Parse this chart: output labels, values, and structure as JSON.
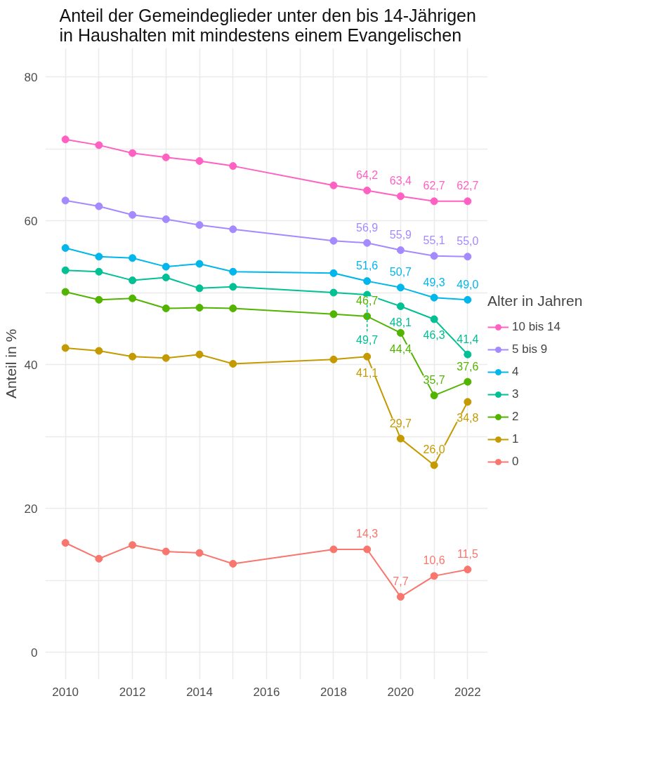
{
  "chart_data": {
    "type": "line",
    "title": "Anteil der Gemeindeglieder unter den bis 14-Jährigen\nin Haushalten mit mindestens einem Evangelischen",
    "ylabel": "Anteil in %",
    "legend_title": "Alter in Jahren",
    "x": [
      2010,
      2011,
      2012,
      2013,
      2014,
      2015,
      2018,
      2019,
      2020,
      2021,
      2022
    ],
    "xlim": [
      2009.4,
      2022.6
    ],
    "ylim": [
      -3.8,
      84
    ],
    "xticks": [
      2010,
      {
        "value": 2011,
        "label": null
      },
      2012,
      {
        "value": 2013,
        "label": null
      },
      2014,
      {
        "value": 2015,
        "label": null
      },
      2016,
      {
        "value": 2017,
        "label": null
      },
      2018,
      {
        "value": 2019,
        "label": null
      },
      2020,
      {
        "value": 2021,
        "label": null
      },
      2022
    ],
    "yticks": [
      0,
      {
        "value": 10,
        "label": null
      },
      20,
      {
        "value": 30,
        "label": null
      },
      40,
      {
        "value": 50,
        "label": null
      },
      60,
      {
        "value": 70,
        "label": null
      },
      80
    ],
    "grid": true,
    "legend": "right",
    "marker": "circle",
    "line_style": "solid",
    "series": [
      {
        "name": "10 bis 14",
        "color": "#ff61c3",
        "values": [
          71.3,
          70.5,
          69.4,
          68.8,
          68.3,
          67.6,
          64.9,
          64.2,
          63.4,
          62.7,
          62.7
        ],
        "value_labels": [
          null,
          null,
          null,
          null,
          null,
          null,
          null,
          "64,2",
          "63,4",
          "62,7",
          "62,7"
        ]
      },
      {
        "name": "5 bis 9",
        "color": "#a58aff",
        "values": [
          62.8,
          62.0,
          60.8,
          60.2,
          59.4,
          58.8,
          57.2,
          56.9,
          55.9,
          55.1,
          55.0
        ],
        "value_labels": [
          null,
          null,
          null,
          null,
          null,
          null,
          null,
          "56,9",
          "55,9",
          "55,1",
          "55,0"
        ]
      },
      {
        "name": "4",
        "color": "#00b6eb",
        "values": [
          56.2,
          55.0,
          54.8,
          53.6,
          54.0,
          52.9,
          52.7,
          51.6,
          50.7,
          49.3,
          49.0
        ],
        "value_labels": [
          null,
          null,
          null,
          null,
          null,
          null,
          null,
          "51,6",
          "50,7",
          "49,3",
          "49,0"
        ]
      },
      {
        "name": "3",
        "color": "#00c094",
        "values": [
          53.1,
          52.9,
          51.7,
          52.1,
          50.6,
          50.8,
          50.0,
          49.7,
          48.1,
          46.3,
          41.4
        ],
        "value_labels": [
          null,
          null,
          null,
          null,
          null,
          null,
          null,
          "49,7",
          "48,1",
          "46,3",
          "41,4"
        ]
      },
      {
        "name": "2",
        "color": "#53b400",
        "values": [
          50.1,
          49.0,
          49.2,
          47.8,
          47.9,
          47.8,
          47.0,
          46.7,
          44.4,
          35.7,
          37.6
        ],
        "value_labels": [
          null,
          null,
          null,
          null,
          null,
          null,
          null,
          "46,7",
          "44,4",
          "35,7",
          "37,6"
        ]
      },
      {
        "name": "1",
        "color": "#c49a00",
        "values": [
          42.3,
          41.9,
          41.1,
          40.9,
          41.4,
          40.1,
          40.7,
          41.1,
          29.7,
          26.0,
          34.8
        ],
        "value_labels": [
          null,
          null,
          null,
          null,
          null,
          null,
          null,
          "41,1",
          "29,7",
          "26,0",
          "34,8"
        ]
      },
      {
        "name": "0",
        "color": "#f8766d",
        "values": [
          15.2,
          13.0,
          14.9,
          14.0,
          13.8,
          12.3,
          14.3,
          14.3,
          7.7,
          10.6,
          11.5
        ],
        "value_labels": [
          null,
          null,
          null,
          null,
          null,
          null,
          null,
          "14,3",
          "7,7",
          "10,6",
          "11,5"
        ]
      }
    ]
  }
}
